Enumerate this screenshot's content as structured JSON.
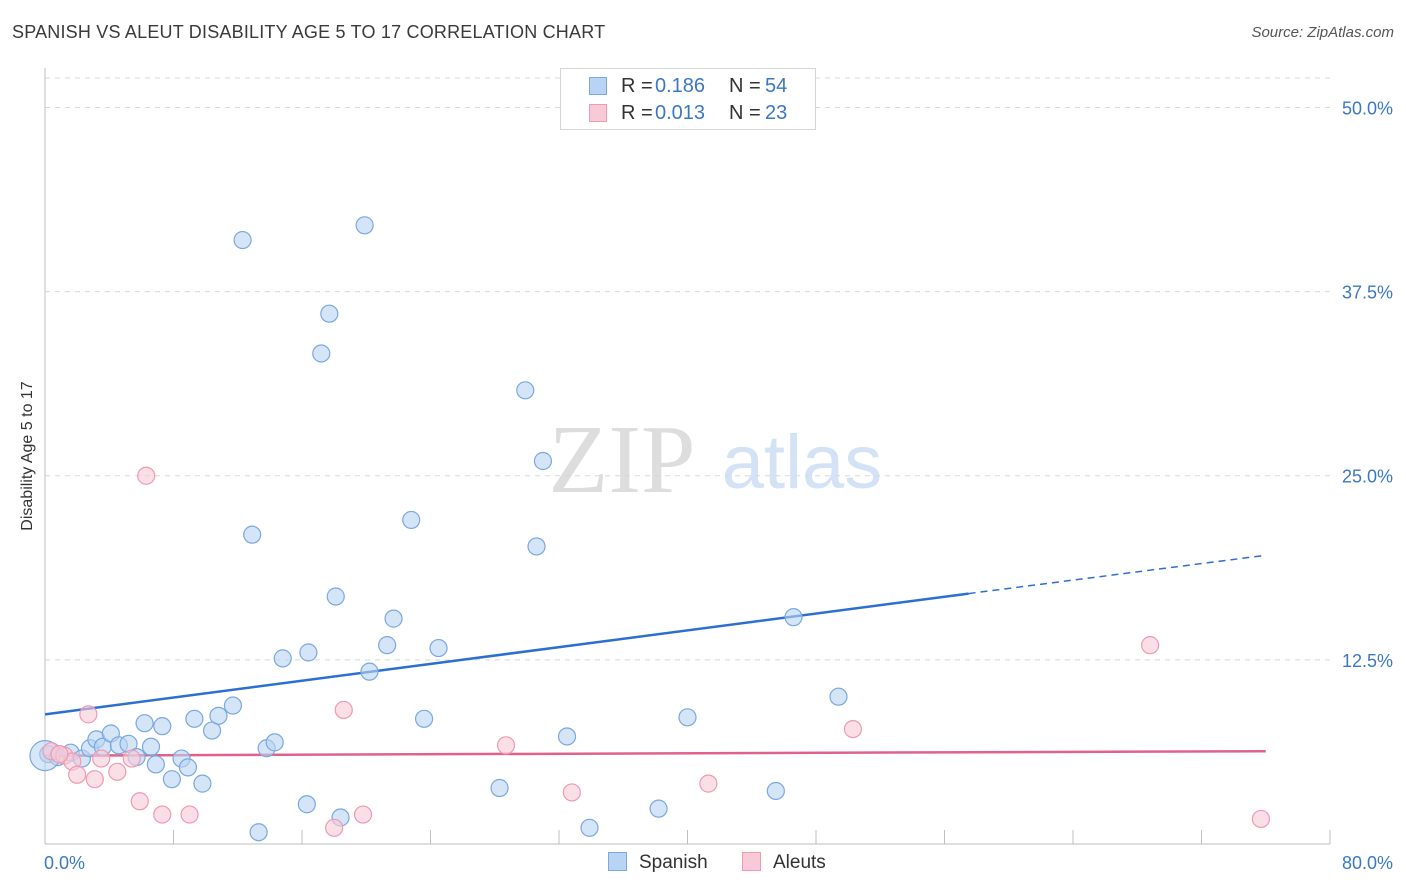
{
  "title": "SPANISH VS ALEUT DISABILITY AGE 5 TO 17 CORRELATION CHART",
  "source": "Source: ZipAtlas.com",
  "legend": {
    "items": [
      {
        "r_label": "R =",
        "r_value": "0.186",
        "n_label": "N =",
        "n_value": "54"
      },
      {
        "r_label": "R =",
        "r_value": "0.013",
        "n_label": "N =",
        "n_value": "23"
      }
    ]
  },
  "bottom_legend": [
    "Spanish",
    "Aleuts"
  ],
  "colors": {
    "spanish_fill": "#b8d3f3",
    "spanish_stroke": "#7aa8df",
    "spanish_line": "#2c6fd1",
    "aleut_fill": "#f8c9d7",
    "aleut_stroke": "#ee9ab3",
    "aleut_line": "#e0628b",
    "tick_label": "#3b78c4",
    "grid": "#d8d8d8"
  },
  "chart_data": {
    "type": "scatter",
    "title": "SPANISH VS ALEUT DISABILITY AGE 5 TO 17 CORRELATION CHART",
    "xlabel": "",
    "ylabel": "Disability Age 5 to 17",
    "xlim": [
      0,
      80
    ],
    "ylim": [
      0,
      52
    ],
    "x_tick_labels": [
      "0.0%",
      "80.0%"
    ],
    "y_ticks": [
      12.5,
      25,
      37.5,
      50
    ],
    "y_tick_labels": [
      "12.5%",
      "25.0%",
      "37.5%",
      "50.0%"
    ],
    "watermark": "ZIPatlas",
    "series": [
      {
        "name": "Spanish",
        "r": 0.186,
        "n": 54,
        "trend": {
          "x0": 0,
          "y0": 8.8,
          "x1": 57.5,
          "y1": 17.0,
          "dash_x1": 76,
          "dash_y1": 19.6
        },
        "points": [
          [
            0.2,
            6.1
          ],
          [
            0.8,
            5.9
          ],
          [
            1.6,
            6.2
          ],
          [
            2.3,
            5.8
          ],
          [
            2.8,
            6.5
          ],
          [
            3.2,
            7.1
          ],
          [
            3.6,
            6.6
          ],
          [
            4.1,
            7.5
          ],
          [
            4.6,
            6.7
          ],
          [
            5.2,
            6.8
          ],
          [
            5.7,
            5.9
          ],
          [
            6.2,
            8.2
          ],
          [
            6.6,
            6.6
          ],
          [
            6.9,
            5.4
          ],
          [
            7.3,
            8.0
          ],
          [
            7.9,
            4.4
          ],
          [
            8.5,
            5.8
          ],
          [
            8.9,
            5.2
          ],
          [
            9.3,
            8.5
          ],
          [
            9.8,
            4.1
          ],
          [
            10.4,
            7.7
          ],
          [
            10.8,
            8.7
          ],
          [
            11.7,
            9.4
          ],
          [
            12.3,
            41.0
          ],
          [
            12.9,
            21.0
          ],
          [
            13.3,
            0.8
          ],
          [
            13.8,
            6.5
          ],
          [
            14.3,
            6.9
          ],
          [
            14.8,
            12.6
          ],
          [
            16.3,
            2.7
          ],
          [
            16.4,
            13.0
          ],
          [
            17.2,
            33.3
          ],
          [
            17.7,
            36.0
          ],
          [
            18.1,
            16.8
          ],
          [
            18.4,
            1.8
          ],
          [
            19.9,
            42.0
          ],
          [
            20.2,
            11.7
          ],
          [
            21.3,
            13.5
          ],
          [
            21.7,
            15.3
          ],
          [
            22.8,
            22.0
          ],
          [
            23.6,
            8.5
          ],
          [
            24.5,
            13.3
          ],
          [
            28.3,
            3.8
          ],
          [
            29.9,
            30.8
          ],
          [
            30.6,
            20.2
          ],
          [
            31.0,
            26.0
          ],
          [
            32.5,
            7.3
          ],
          [
            33.9,
            1.1
          ],
          [
            38.2,
            2.4
          ],
          [
            40.0,
            8.6
          ],
          [
            45.5,
            3.6
          ],
          [
            46.6,
            15.4
          ],
          [
            49.4,
            10.0
          ],
          [
            0.0,
            6.0
          ]
        ]
      },
      {
        "name": "Aleuts",
        "r": 0.013,
        "n": 23,
        "trend": {
          "x0": 0,
          "y0": 6.0,
          "x1": 76,
          "y1": 6.3
        },
        "points": [
          [
            0.4,
            6.3
          ],
          [
            1.2,
            6.0
          ],
          [
            1.7,
            5.6
          ],
          [
            2.0,
            4.7
          ],
          [
            2.7,
            8.8
          ],
          [
            3.1,
            4.4
          ],
          [
            3.5,
            5.8
          ],
          [
            4.5,
            4.9
          ],
          [
            5.4,
            5.8
          ],
          [
            5.9,
            2.9
          ],
          [
            6.3,
            25.0
          ],
          [
            7.3,
            2.0
          ],
          [
            9.0,
            2.0
          ],
          [
            18.0,
            1.1
          ],
          [
            18.6,
            9.1
          ],
          [
            19.8,
            2.0
          ],
          [
            28.7,
            6.7
          ],
          [
            32.8,
            3.5
          ],
          [
            41.3,
            4.1
          ],
          [
            50.3,
            7.8
          ],
          [
            68.8,
            13.5
          ],
          [
            75.7,
            1.7
          ],
          [
            0.9,
            6.1
          ]
        ]
      }
    ]
  }
}
